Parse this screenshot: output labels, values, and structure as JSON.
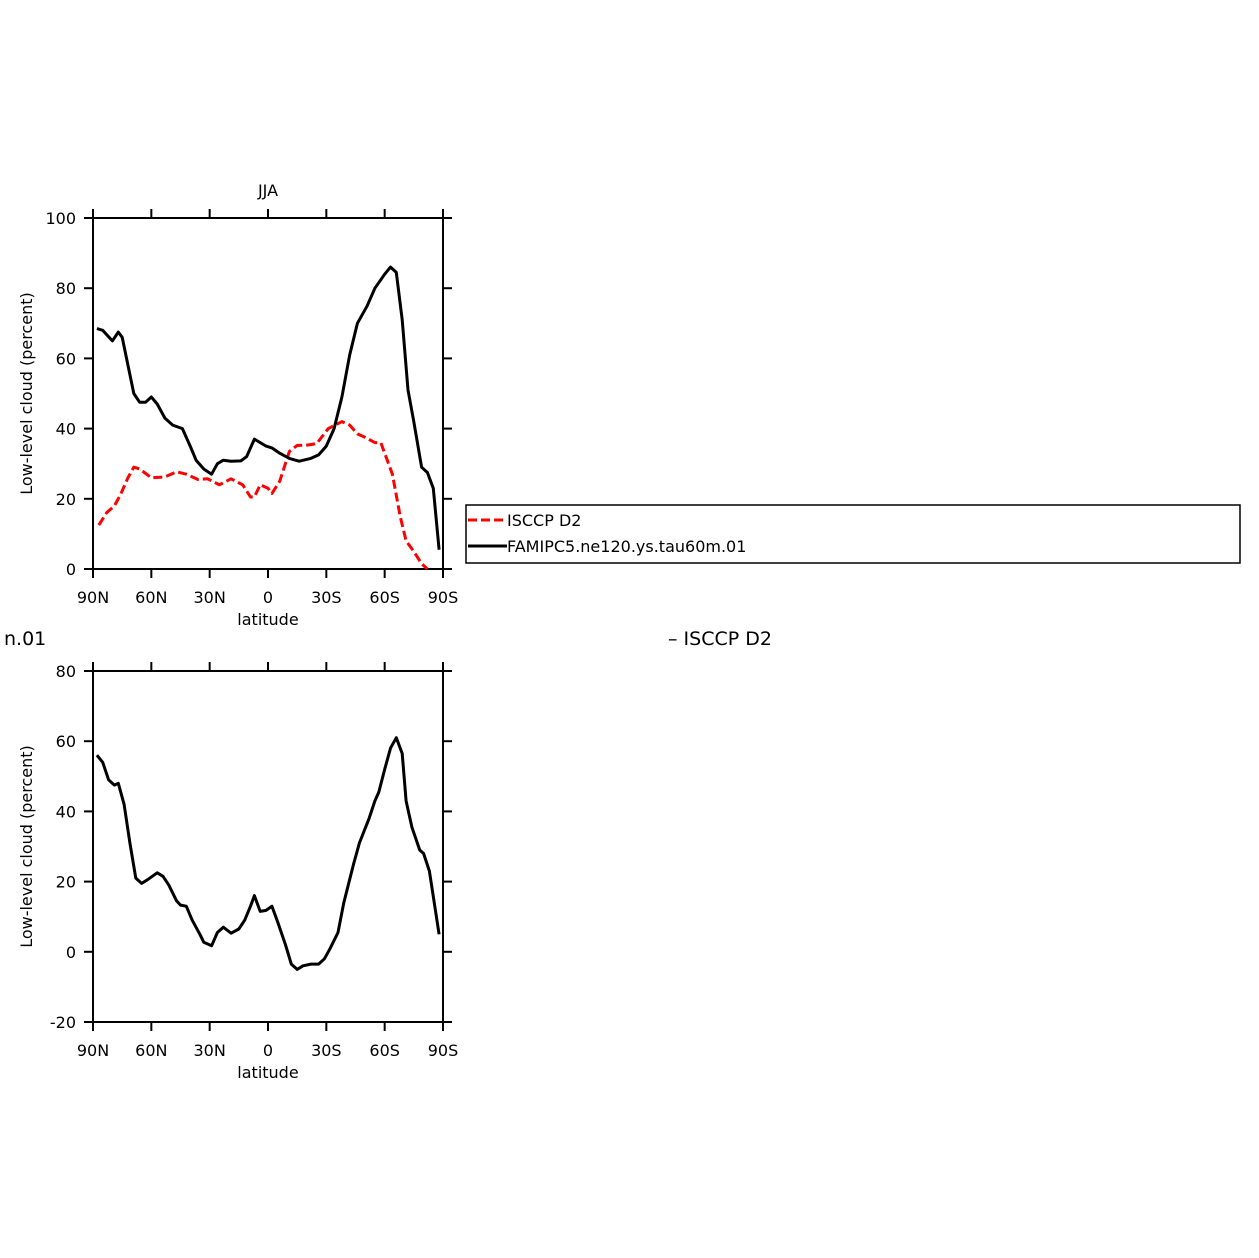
{
  "chart_data": [
    {
      "type": "line",
      "title": "JJA",
      "x_label": "latitude",
      "y_label": "Low-level cloud (percent)",
      "xlim": [
        90,
        -90
      ],
      "ylim": [
        0,
        100
      ],
      "xticks": [
        {
          "value": 90,
          "label": "90N"
        },
        {
          "value": 60,
          "label": "60N"
        },
        {
          "value": 30,
          "label": "30N"
        },
        0,
        {
          "value": -30,
          "label": "30S"
        },
        {
          "value": -60,
          "label": "60S"
        },
        {
          "value": -90,
          "label": "90S"
        }
      ],
      "yticks": [
        0,
        20,
        40,
        60,
        80,
        100
      ],
      "legend": "outside-right",
      "series": [
        {
          "name": "ISCCP D2",
          "color": "#ff0000",
          "line_style": "dashed",
          "x": [
            87,
            83,
            79,
            76,
            72,
            69,
            66,
            60,
            53,
            47,
            42,
            36,
            31,
            25,
            19,
            13,
            9,
            7,
            4,
            0,
            -2,
            -6,
            -11,
            -15,
            -19,
            -25,
            -31,
            -38,
            -42,
            -46,
            -50,
            -55,
            -58,
            -64,
            -68,
            -71,
            -75,
            -79,
            -82
          ],
          "values": [
            12.5,
            16,
            18,
            21,
            26,
            29,
            28.5,
            26,
            26.2,
            27.7,
            27,
            25.5,
            25.7,
            24,
            25.7,
            24,
            20.5,
            20.5,
            24,
            23,
            21.5,
            25,
            33.5,
            35.2,
            35.2,
            35.7,
            40,
            42,
            41,
            38.5,
            37.5,
            36,
            36,
            27,
            15,
            8,
            5,
            1.5,
            0
          ]
        },
        {
          "name": "FAMIPC5.ne120.ys.tau60m.01",
          "color": "#000000",
          "line_style": "solid",
          "x": [
            88,
            85,
            80,
            77,
            75,
            72,
            69,
            66,
            63,
            60,
            57,
            53,
            49,
            44,
            40,
            37,
            33,
            29,
            26,
            23,
            19,
            14,
            11,
            7,
            1,
            -2,
            -6,
            -11,
            -16,
            -22,
            -26,
            -30,
            -34,
            -38,
            -42,
            -46,
            -51,
            -55,
            -60,
            -63,
            -66,
            -69,
            -72,
            -75,
            -79,
            -82,
            -85,
            -88
          ],
          "values": [
            68.5,
            68,
            65,
            67.5,
            66,
            58,
            50,
            47.5,
            47.5,
            49,
            47,
            43,
            41,
            40,
            35,
            31,
            28.5,
            27,
            30,
            31,
            30.7,
            30.8,
            32,
            37,
            35,
            34.5,
            33,
            31.5,
            30.7,
            31.5,
            32.5,
            35,
            40,
            49,
            61,
            70,
            75,
            80,
            84,
            86,
            84.5,
            71,
            51,
            42,
            29,
            27.5,
            23,
            5.5
          ]
        }
      ]
    },
    {
      "type": "line",
      "x_label": "latitude",
      "y_label": "Low-level cloud (percent)",
      "annotations": [
        "n.01",
        "– ISCCP D2"
      ],
      "xlim": [
        90,
        -90
      ],
      "ylim": [
        -20,
        80
      ],
      "xticks": [
        {
          "value": 90,
          "label": "90N"
        },
        {
          "value": 60,
          "label": "60N"
        },
        {
          "value": 30,
          "label": "30N"
        },
        0,
        {
          "value": -30,
          "label": "30S"
        },
        {
          "value": -60,
          "label": "60S"
        },
        {
          "value": -90,
          "label": "90S"
        }
      ],
      "yticks": [
        -20,
        0,
        20,
        40,
        60,
        80
      ],
      "series": [
        {
          "color": "#000000",
          "line_style": "solid",
          "x": [
            88,
            85,
            82,
            79,
            77,
            74,
            71,
            68,
            65,
            62,
            57,
            54,
            51,
            47,
            45,
            42,
            39,
            35,
            33,
            29,
            26,
            23,
            19,
            15,
            12,
            9,
            7,
            4,
            1,
            -2,
            -5,
            -9,
            -12,
            -15,
            -18,
            -22,
            -26,
            -29,
            -32,
            -36,
            -39,
            -44,
            -47,
            -52,
            -55,
            -57,
            -60,
            -63,
            -66,
            -69,
            -71,
            -74,
            -78,
            -80,
            -83,
            -88
          ],
          "values": [
            56,
            54,
            49,
            47.5,
            48,
            42,
            31,
            21,
            19.5,
            20.5,
            22.5,
            21.5,
            19,
            14.5,
            13.3,
            13,
            9,
            5,
            2.7,
            1.7,
            5.5,
            7,
            5.3,
            6.5,
            9,
            13,
            16,
            11.5,
            11.8,
            13,
            8.5,
            2,
            -3.5,
            -5,
            -4,
            -3.5,
            -3.5,
            -2,
            1,
            5.5,
            14,
            25,
            31,
            38,
            43,
            45.5,
            52,
            58,
            61,
            56.5,
            43,
            35.5,
            29,
            28,
            23,
            5
          ]
        }
      ]
    }
  ]
}
